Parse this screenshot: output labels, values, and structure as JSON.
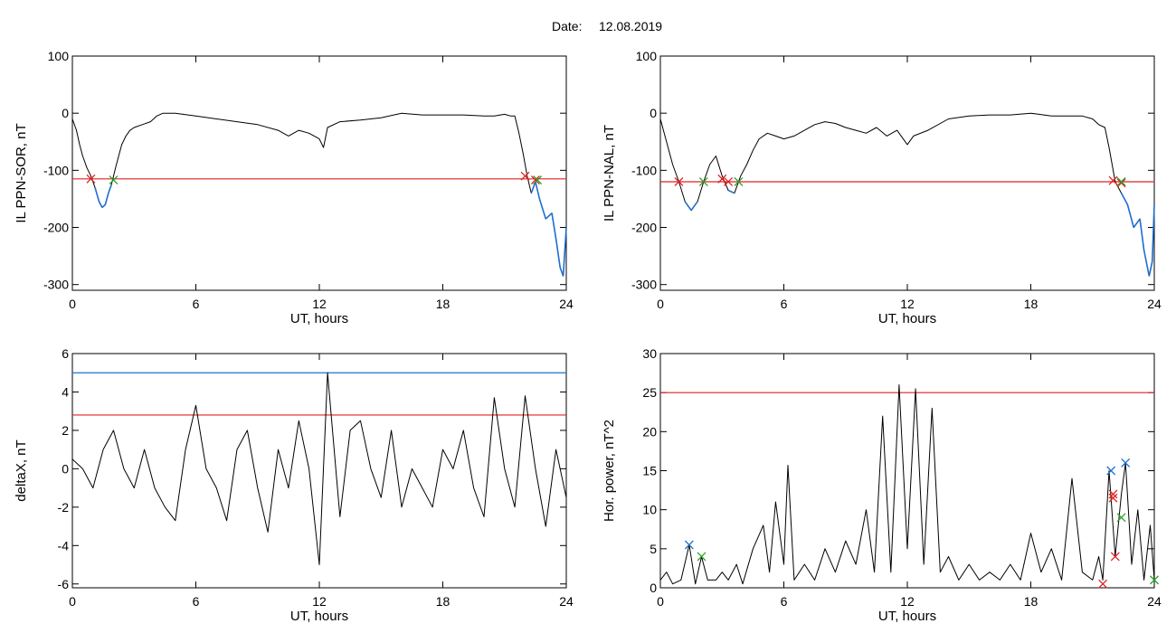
{
  "header": {
    "date_label": "Date:",
    "date_value": "12.08.2019"
  },
  "chart_data": [
    {
      "type": "line",
      "xlabel": "UT, hours",
      "ylabel": "IL PPN-SOR, nT",
      "xlim": [
        0,
        24
      ],
      "ylim": [
        -310,
        100
      ],
      "xticks": [
        0,
        6,
        12,
        18,
        24
      ],
      "yticks": [
        100,
        0,
        -100,
        -200,
        -300
      ],
      "series": [
        {
          "values": [
            [
              0,
              -10
            ],
            [
              0.2,
              -30
            ],
            [
              0.35,
              -55
            ],
            [
              0.5,
              -75
            ],
            [
              0.7,
              -95
            ],
            [
              0.9,
              -110
            ],
            [
              1.1,
              -130
            ],
            [
              1.3,
              -155
            ],
            [
              1.45,
              -165
            ],
            [
              1.6,
              -160
            ],
            [
              1.75,
              -140
            ],
            [
              1.9,
              -125
            ],
            [
              2.0,
              -110
            ],
            [
              2.1,
              -95
            ],
            [
              2.25,
              -75
            ],
            [
              2.4,
              -55
            ],
            [
              2.6,
              -40
            ],
            [
              2.8,
              -30
            ],
            [
              3.0,
              -25
            ],
            [
              3.4,
              -20
            ],
            [
              3.8,
              -15
            ],
            [
              4.1,
              -5
            ],
            [
              4.4,
              0
            ],
            [
              5,
              0
            ],
            [
              6,
              -5
            ],
            [
              7,
              -10
            ],
            [
              8,
              -15
            ],
            [
              9,
              -20
            ],
            [
              10,
              -30
            ],
            [
              10.5,
              -40
            ],
            [
              11,
              -30
            ],
            [
              11.5,
              -35
            ],
            [
              12,
              -45
            ],
            [
              12.2,
              -60
            ],
            [
              12.4,
              -25
            ],
            [
              13,
              -15
            ],
            [
              14,
              -12
            ],
            [
              15,
              -8
            ],
            [
              16,
              0
            ],
            [
              17,
              -3
            ],
            [
              18,
              -3
            ],
            [
              19,
              -3
            ],
            [
              20,
              -5
            ],
            [
              20.5,
              -5
            ],
            [
              21,
              -2
            ],
            [
              21.3,
              -5
            ],
            [
              21.5,
              -5
            ],
            [
              21.7,
              -35
            ],
            [
              21.9,
              -70
            ],
            [
              22.1,
              -110
            ],
            [
              22.3,
              -140
            ],
            [
              22.5,
              -120
            ],
            [
              22.7,
              -150
            ],
            [
              23,
              -185
            ],
            [
              23.3,
              -175
            ],
            [
              23.5,
              -220
            ],
            [
              23.7,
              -270
            ],
            [
              23.85,
              -285
            ],
            [
              24,
              -200
            ]
          ]
        }
      ],
      "threshold": -115,
      "markers": {
        "red_x": [
          [
            0.9,
            -115
          ],
          [
            22.0,
            -110
          ],
          [
            22.5,
            -117
          ]
        ],
        "green_x": [
          [
            2.0,
            -117
          ],
          [
            22.6,
            -117
          ]
        ]
      }
    },
    {
      "type": "line",
      "xlabel": "UT, hours",
      "ylabel": "IL PPN-NAL, nT",
      "xlim": [
        0,
        24
      ],
      "ylim": [
        -310,
        100
      ],
      "xticks": [
        0,
        6,
        12,
        18,
        24
      ],
      "yticks": [
        100,
        0,
        -100,
        -200,
        -300
      ],
      "series": [
        {
          "values": [
            [
              0,
              -10
            ],
            [
              0.3,
              -50
            ],
            [
              0.6,
              -90
            ],
            [
              0.9,
              -120
            ],
            [
              1.2,
              -155
            ],
            [
              1.5,
              -170
            ],
            [
              1.8,
              -155
            ],
            [
              2.1,
              -120
            ],
            [
              2.4,
              -90
            ],
            [
              2.7,
              -75
            ],
            [
              3.0,
              -110
            ],
            [
              3.3,
              -135
            ],
            [
              3.6,
              -140
            ],
            [
              3.9,
              -110
            ],
            [
              4.2,
              -90
            ],
            [
              4.5,
              -65
            ],
            [
              4.8,
              -45
            ],
            [
              5.2,
              -35
            ],
            [
              5.6,
              -40
            ],
            [
              6,
              -45
            ],
            [
              6.5,
              -40
            ],
            [
              7,
              -30
            ],
            [
              7.5,
              -20
            ],
            [
              8,
              -15
            ],
            [
              8.5,
              -18
            ],
            [
              9,
              -25
            ],
            [
              9.5,
              -30
            ],
            [
              10,
              -35
            ],
            [
              10.5,
              -25
            ],
            [
              11,
              -40
            ],
            [
              11.5,
              -30
            ],
            [
              12,
              -55
            ],
            [
              12.3,
              -40
            ],
            [
              13,
              -30
            ],
            [
              14,
              -10
            ],
            [
              15,
              -5
            ],
            [
              16,
              -3
            ],
            [
              17,
              -3
            ],
            [
              18,
              0
            ],
            [
              19,
              -5
            ],
            [
              20,
              -5
            ],
            [
              20.5,
              -5
            ],
            [
              21,
              -10
            ],
            [
              21.3,
              -20
            ],
            [
              21.6,
              -25
            ],
            [
              21.8,
              -60
            ],
            [
              22.1,
              -120
            ],
            [
              22.4,
              -140
            ],
            [
              22.7,
              -160
            ],
            [
              23.0,
              -200
            ],
            [
              23.3,
              -185
            ],
            [
              23.5,
              -240
            ],
            [
              23.75,
              -285
            ],
            [
              23.9,
              -260
            ],
            [
              24,
              -160
            ]
          ]
        }
      ],
      "threshold": -120,
      "markers": {
        "red_x": [
          [
            0.9,
            -120
          ],
          [
            3.0,
            -115
          ],
          [
            3.3,
            -120
          ],
          [
            22.0,
            -118
          ],
          [
            22.4,
            -122
          ]
        ],
        "green_x": [
          [
            2.1,
            -120
          ],
          [
            3.8,
            -120
          ],
          [
            22.4,
            -120
          ]
        ]
      }
    },
    {
      "type": "line",
      "xlabel": "UT, hours",
      "ylabel": "deltaX, nT",
      "xlim": [
        0,
        24
      ],
      "ylim": [
        -6.2,
        6
      ],
      "xticks": [
        0,
        6,
        12,
        18,
        24
      ],
      "yticks": [
        6,
        4,
        2,
        0,
        -2,
        -4,
        -6
      ],
      "series": [
        {
          "values": [
            [
              0,
              0.5
            ],
            [
              0.5,
              0
            ],
            [
              1,
              -1
            ],
            [
              1.5,
              1
            ],
            [
              2,
              2
            ],
            [
              2.5,
              0
            ],
            [
              3,
              -1
            ],
            [
              3.5,
              1
            ],
            [
              4,
              -1
            ],
            [
              4.5,
              -2
            ],
            [
              5,
              -2.7
            ],
            [
              5.5,
              1
            ],
            [
              6,
              3.3
            ],
            [
              6.5,
              0
            ],
            [
              7,
              -1
            ],
            [
              7.5,
              -2.7
            ],
            [
              8,
              1
            ],
            [
              8.5,
              2
            ],
            [
              9,
              -1
            ],
            [
              9.5,
              -3.3
            ],
            [
              10,
              1
            ],
            [
              10.5,
              -1
            ],
            [
              11,
              2.5
            ],
            [
              11.5,
              0
            ],
            [
              12,
              -5
            ],
            [
              12.4,
              5
            ],
            [
              12.8,
              0
            ],
            [
              13,
              -2.5
            ],
            [
              13.5,
              2
            ],
            [
              14,
              2.5
            ],
            [
              14.5,
              0
            ],
            [
              15,
              -1.5
            ],
            [
              15.5,
              2
            ],
            [
              16,
              -2
            ],
            [
              16.5,
              0
            ],
            [
              17,
              -1
            ],
            [
              17.5,
              -2
            ],
            [
              18,
              1
            ],
            [
              18.5,
              0
            ],
            [
              19,
              2
            ],
            [
              19.5,
              -1
            ],
            [
              20,
              -2.5
            ],
            [
              20.5,
              3.7
            ],
            [
              21,
              0
            ],
            [
              21.5,
              -2
            ],
            [
              22,
              3.8
            ],
            [
              22.5,
              0
            ],
            [
              23,
              -3
            ],
            [
              23.5,
              1
            ],
            [
              24,
              -1.5
            ]
          ]
        }
      ],
      "hlines": [
        {
          "y": 5.0,
          "color": "#1f6fd0"
        },
        {
          "y": 2.8,
          "color": "#e02020"
        }
      ]
    },
    {
      "type": "line",
      "xlabel": "UT, hours",
      "ylabel": "Hor. power, nT^2",
      "xlim": [
        0,
        24
      ],
      "ylim": [
        0,
        30
      ],
      "xticks": [
        0,
        6,
        12,
        18,
        24
      ],
      "yticks": [
        0,
        5,
        10,
        15,
        20,
        25,
        30
      ],
      "series": [
        {
          "values": [
            [
              0,
              1
            ],
            [
              0.3,
              2
            ],
            [
              0.6,
              0.5
            ],
            [
              1,
              1
            ],
            [
              1.4,
              5.5
            ],
            [
              1.7,
              0.5
            ],
            [
              2,
              4
            ],
            [
              2.3,
              1
            ],
            [
              2.7,
              1
            ],
            [
              3,
              2
            ],
            [
              3.3,
              1
            ],
            [
              3.7,
              3
            ],
            [
              4,
              0.5
            ],
            [
              4.5,
              5
            ],
            [
              5,
              8
            ],
            [
              5.3,
              2
            ],
            [
              5.6,
              11
            ],
            [
              6,
              3
            ],
            [
              6.2,
              15.7
            ],
            [
              6.5,
              1
            ],
            [
              7,
              3
            ],
            [
              7.5,
              1
            ],
            [
              8,
              5
            ],
            [
              8.5,
              2
            ],
            [
              9,
              6
            ],
            [
              9.5,
              3
            ],
            [
              10,
              10
            ],
            [
              10.4,
              2
            ],
            [
              10.8,
              22
            ],
            [
              11.2,
              2
            ],
            [
              11.6,
              26
            ],
            [
              12,
              5
            ],
            [
              12.4,
              25.5
            ],
            [
              12.8,
              3
            ],
            [
              13.2,
              23
            ],
            [
              13.6,
              2
            ],
            [
              14,
              4
            ],
            [
              14.5,
              1
            ],
            [
              15,
              3
            ],
            [
              15.5,
              1
            ],
            [
              16,
              2
            ],
            [
              16.5,
              1
            ],
            [
              17,
              3
            ],
            [
              17.5,
              1
            ],
            [
              18,
              7
            ],
            [
              18.5,
              2
            ],
            [
              19,
              5
            ],
            [
              19.5,
              1
            ],
            [
              20,
              14
            ],
            [
              20.5,
              2
            ],
            [
              21,
              1
            ],
            [
              21.3,
              4
            ],
            [
              21.5,
              1
            ],
            [
              21.8,
              15
            ],
            [
              22.1,
              4
            ],
            [
              22.4,
              12
            ],
            [
              22.6,
              16
            ],
            [
              22.9,
              3
            ],
            [
              23.2,
              10
            ],
            [
              23.5,
              1
            ],
            [
              23.8,
              8
            ],
            [
              24,
              1
            ]
          ]
        }
      ],
      "threshold": 25,
      "markers": {
        "blue_x": [
          [
            1.4,
            5.5
          ],
          [
            21.9,
            15
          ],
          [
            22.6,
            16
          ]
        ],
        "red_x": [
          [
            21.5,
            0.5
          ],
          [
            22.0,
            12
          ],
          [
            22.0,
            11.5
          ],
          [
            22.1,
            4
          ]
        ],
        "green_x": [
          [
            2.0,
            4
          ],
          [
            22.4,
            9
          ],
          [
            24,
            1
          ]
        ]
      }
    }
  ]
}
